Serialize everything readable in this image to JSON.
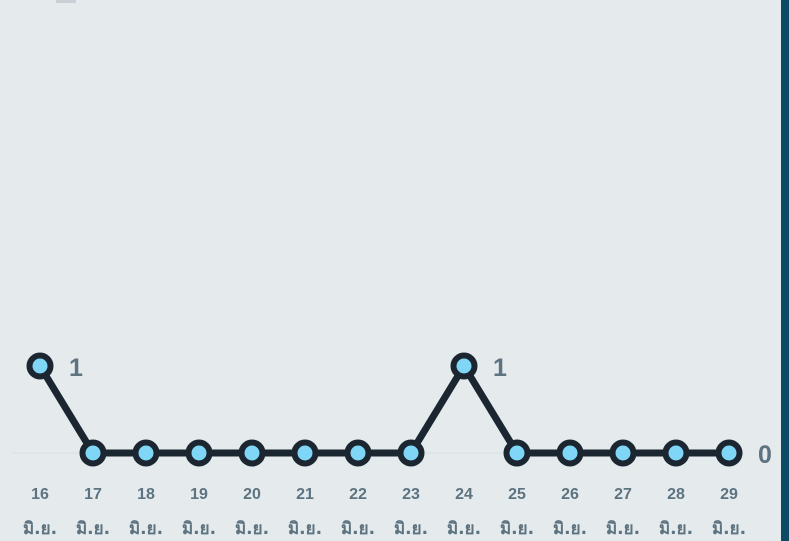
{
  "colors": {
    "background": "#e5eaed",
    "line": "#1b2631",
    "marker_fill": "#7fd6f6",
    "label_text": "#5d7380",
    "baseline": "#dde3e7",
    "accent_bar": "#0d4a66"
  },
  "chart_data": {
    "type": "line",
    "categories": [
      [
        "16",
        "มิ.ย."
      ],
      [
        "17",
        "มิ.ย."
      ],
      [
        "18",
        "มิ.ย."
      ],
      [
        "19",
        "มิ.ย."
      ],
      [
        "20",
        "มิ.ย."
      ],
      [
        "21",
        "มิ.ย."
      ],
      [
        "22",
        "มิ.ย."
      ],
      [
        "23",
        "มิ.ย."
      ],
      [
        "24",
        "มิ.ย."
      ],
      [
        "25",
        "มิ.ย."
      ],
      [
        "26",
        "มิ.ย."
      ],
      [
        "27",
        "มิ.ย."
      ],
      [
        "28",
        "มิ.ย."
      ],
      [
        "29",
        "มิ.ย."
      ]
    ],
    "values": [
      1,
      0,
      0,
      0,
      0,
      0,
      0,
      0,
      1,
      0,
      0,
      0,
      0,
      0
    ],
    "data_labels": [
      {
        "index": 0,
        "text": "1"
      },
      {
        "index": 8,
        "text": "1"
      },
      {
        "index": 13,
        "text": "0"
      }
    ],
    "ylim": [
      0,
      1
    ],
    "grid": false,
    "legend": "none"
  }
}
